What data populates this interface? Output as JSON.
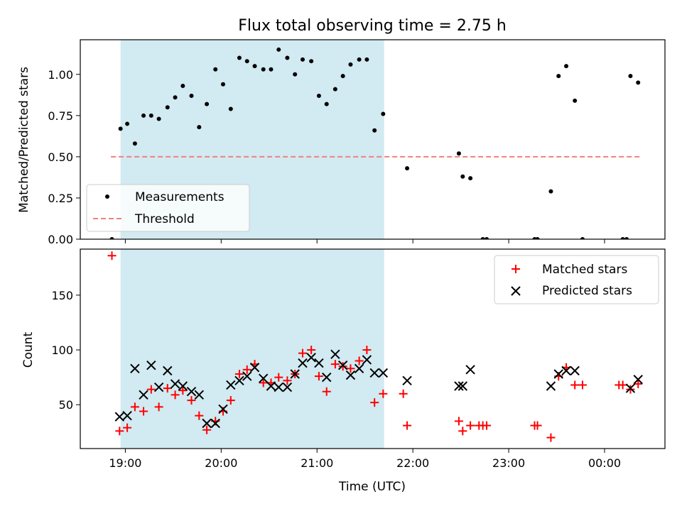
{
  "chart_data": [
    {
      "type": "scatter",
      "title": "Flux total observing time = 2.75 h",
      "xlabel": "",
      "ylabel": "Matched/Predicted stars",
      "xlim_hours": [
        18.53,
        24.63
      ],
      "ylim": [
        0,
        1.21
      ],
      "yticks": [
        0.0,
        0.25,
        0.5,
        0.75,
        1.0
      ],
      "ytick_labels": [
        "0.00",
        "0.25",
        "0.50",
        "0.75",
        "1.00"
      ],
      "xticks_hours": [
        19,
        20,
        21,
        22,
        23,
        24
      ],
      "shaded_region_hours": [
        18.95,
        21.7
      ],
      "shade_color": "#add8e6",
      "legend": {
        "position": "lower left",
        "entries": [
          "Measurements",
          "Threshold"
        ]
      },
      "threshold": {
        "name": "Threshold",
        "value": 0.5,
        "x_range_hours": [
          18.85,
          24.37
        ],
        "color": "#f08080"
      },
      "series": [
        {
          "name": "Measurements",
          "color": "#000000",
          "x": [
            18.86,
            18.95,
            19.02,
            19.1,
            19.19,
            19.27,
            19.35,
            19.44,
            19.52,
            19.6,
            19.69,
            19.77,
            19.85,
            19.94,
            20.02,
            20.1,
            20.19,
            20.27,
            20.35,
            20.44,
            20.52,
            20.6,
            20.69,
            20.77,
            20.85,
            20.94,
            21.02,
            21.1,
            21.19,
            21.27,
            21.35,
            21.44,
            21.52,
            21.6,
            21.69,
            21.94,
            22.48,
            22.52,
            22.6,
            22.73,
            22.77,
            23.27,
            23.3,
            23.44,
            23.52,
            23.6,
            23.69,
            23.77,
            24.19,
            24.23,
            24.27,
            24.35
          ],
          "y": [
            0.0,
            0.67,
            0.7,
            0.58,
            0.75,
            0.75,
            0.73,
            0.8,
            0.86,
            0.93,
            0.87,
            0.68,
            0.82,
            1.03,
            0.94,
            0.79,
            1.1,
            1.08,
            1.05,
            1.03,
            1.03,
            1.15,
            1.1,
            1.0,
            1.09,
            1.08,
            0.87,
            0.82,
            0.91,
            0.99,
            1.06,
            1.09,
            1.09,
            0.66,
            0.76,
            0.43,
            0.52,
            0.38,
            0.37,
            0.0,
            0.0,
            0.0,
            0.0,
            0.29,
            0.99,
            1.05,
            0.84,
            0.0,
            0.0,
            0.0,
            0.99,
            0.95
          ]
        }
      ]
    },
    {
      "type": "scatter",
      "title": "",
      "xlabel": "Time (UTC)",
      "ylabel": "Count",
      "xlim_hours": [
        18.53,
        24.63
      ],
      "ylim": [
        10,
        192
      ],
      "yticks": [
        50,
        100,
        150
      ],
      "ytick_labels": [
        "50",
        "100",
        "150"
      ],
      "xticks_hours": [
        19,
        20,
        21,
        22,
        23,
        24
      ],
      "xtick_labels": [
        "19:00",
        "20:00",
        "21:00",
        "22:00",
        "23:00",
        "00:00"
      ],
      "shaded_region_hours": [
        18.95,
        21.7
      ],
      "shade_color": "#add8e6",
      "legend": {
        "position": "upper right",
        "entries": [
          "Matched stars",
          "Predicted stars"
        ]
      },
      "series": [
        {
          "name": "Matched stars",
          "marker": "plus",
          "color": "#ff0000",
          "x": [
            18.86,
            18.94,
            19.02,
            19.1,
            19.19,
            19.27,
            19.35,
            19.44,
            19.52,
            19.6,
            19.69,
            19.77,
            19.85,
            19.94,
            20.02,
            20.1,
            20.19,
            20.27,
            20.35,
            20.44,
            20.52,
            20.6,
            20.69,
            20.77,
            20.85,
            20.94,
            21.02,
            21.1,
            21.19,
            21.27,
            21.35,
            21.44,
            21.52,
            21.6,
            21.69,
            21.9,
            21.94,
            22.48,
            22.52,
            22.6,
            22.69,
            22.73,
            22.77,
            23.27,
            23.3,
            23.44,
            23.52,
            23.6,
            23.69,
            23.77,
            24.15,
            24.19,
            24.27,
            24.35
          ],
          "y": [
            186,
            26,
            29,
            48,
            44,
            64,
            48,
            65,
            59,
            63,
            54,
            40,
            27,
            35,
            44,
            54,
            78,
            82,
            87,
            70,
            70,
            75,
            72,
            78,
            97,
            100,
            76,
            62,
            87,
            85,
            83,
            90,
            100,
            52,
            60,
            60,
            31,
            35,
            26,
            31,
            31,
            31,
            31,
            31,
            31,
            20,
            76,
            84,
            68,
            68,
            68,
            68,
            64,
            69
          ]
        },
        {
          "name": "Predicted stars",
          "marker": "x",
          "color": "#000000",
          "x": [
            18.94,
            19.02,
            19.1,
            19.19,
            19.27,
            19.35,
            19.44,
            19.52,
            19.6,
            19.69,
            19.77,
            19.85,
            19.94,
            20.02,
            20.1,
            20.19,
            20.27,
            20.35,
            20.44,
            20.52,
            20.6,
            20.69,
            20.77,
            20.85,
            20.94,
            21.02,
            21.1,
            21.19,
            21.27,
            21.35,
            21.44,
            21.52,
            21.6,
            21.69,
            21.94,
            22.48,
            22.52,
            22.6,
            23.44,
            23.52,
            23.6,
            23.69,
            24.27,
            24.35
          ],
          "y": [
            39,
            40,
            83,
            59,
            86,
            66,
            81,
            69,
            67,
            62,
            59,
            33,
            33,
            46,
            68,
            72,
            76,
            84,
            74,
            67,
            66,
            66,
            78,
            88,
            93,
            88,
            75,
            96,
            86,
            77,
            83,
            91,
            79,
            79,
            72,
            67,
            67,
            82,
            67,
            78,
            81,
            81,
            65,
            73
          ]
        }
      ]
    }
  ]
}
